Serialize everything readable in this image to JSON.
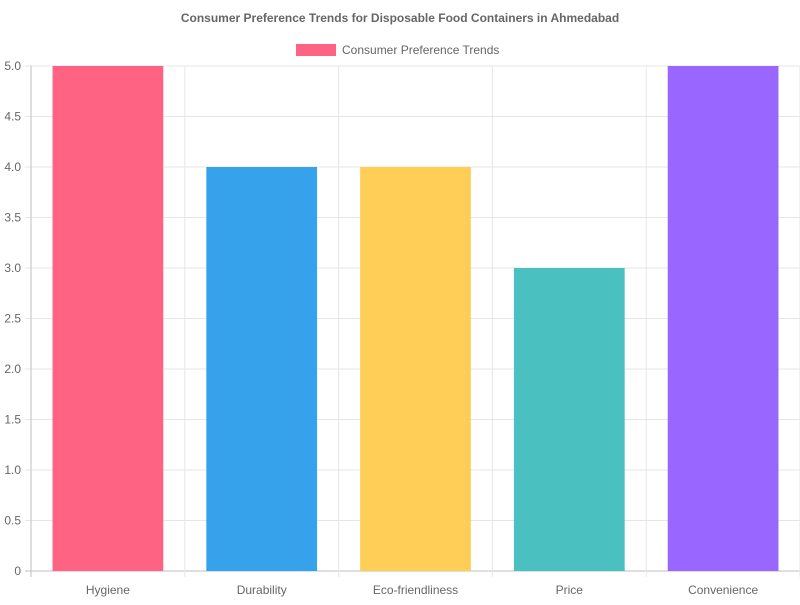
{
  "chart_data": {
    "type": "bar",
    "title": "Consumer Preference Trends for Disposable Food Containers in Ahmedabad",
    "categories": [
      "Hygiene",
      "Durability",
      "Eco-friendliness",
      "Price",
      "Convenience"
    ],
    "series": [
      {
        "name": "Consumer Preference Trends",
        "values": [
          5,
          4,
          4,
          3,
          5
        ]
      }
    ],
    "bar_colors": [
      "#ff6384",
      "#36a2eb",
      "#ffce56",
      "#4bc0c0",
      "#9966ff"
    ],
    "legend_color": "#ff6384",
    "xlabel": "",
    "ylabel": "",
    "ylim": [
      0,
      5
    ],
    "y_ticks": [
      "0",
      "0.5",
      "1.0",
      "1.5",
      "2.0",
      "2.5",
      "3.0",
      "3.5",
      "4.0",
      "4.5",
      "5.0"
    ],
    "grid": true,
    "legend_position": "top"
  }
}
